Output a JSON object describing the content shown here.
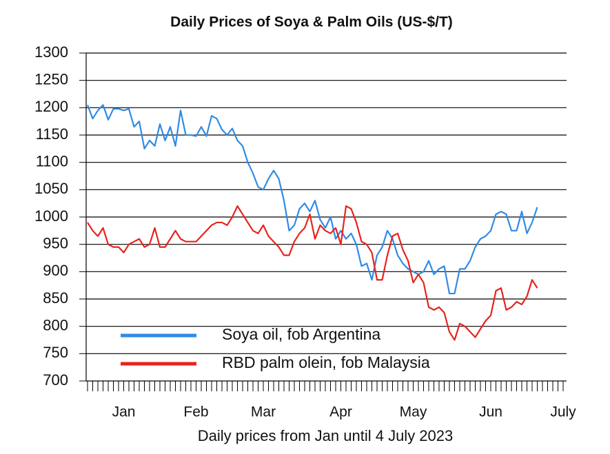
{
  "chart_data": {
    "type": "line",
    "title": "Daily Prices of Soya & Palm Oils (US-$/T)",
    "x_label": "Daily prices from Jan until 4 July 2023",
    "categories": [
      null,
      null,
      null,
      null,
      null,
      null,
      null,
      "Jan",
      null,
      null,
      null,
      null,
      null,
      null,
      null,
      null,
      null,
      null,
      null,
      null,
      null,
      "Feb",
      null,
      null,
      null,
      null,
      null,
      null,
      null,
      null,
      null,
      null,
      null,
      null,
      "Mar",
      null,
      null,
      null,
      null,
      null,
      null,
      null,
      null,
      null,
      null,
      null,
      null,
      null,
      null,
      "Apr",
      null,
      null,
      null,
      null,
      null,
      null,
      null,
      null,
      null,
      null,
      null,
      null,
      null,
      "May",
      null,
      null,
      null,
      null,
      null,
      null,
      null,
      null,
      null,
      null,
      null,
      null,
      null,
      null,
      "Jun",
      null,
      null,
      null,
      null,
      null,
      null,
      null,
      null,
      null,
      null,
      null,
      null,
      null,
      "July"
    ],
    "series": [
      {
        "name": "Soya oil, fob Argentina",
        "color": "#2e8be6",
        "values": [
          1205,
          1180,
          1195,
          1205,
          1178,
          1198,
          1198,
          1195,
          1198,
          1165,
          1175,
          1125,
          1140,
          1130,
          1170,
          1140,
          1165,
          1130,
          1195,
          1150,
          1150,
          1148,
          1165,
          1148,
          1185,
          1180,
          1160,
          1150,
          1162,
          1140,
          1130,
          1100,
          1080,
          1055,
          1050,
          1070,
          1085,
          1070,
          1030,
          975,
          985,
          1015,
          1025,
          1010,
          1030,
          995,
          980,
          1000,
          960,
          975,
          960,
          970,
          950,
          910,
          915,
          885,
          930,
          945,
          975,
          960,
          930,
          915,
          905,
          900,
          895,
          900,
          920,
          895,
          905,
          910,
          860,
          860,
          905,
          905,
          920,
          945,
          960,
          965,
          975,
          1005,
          1010,
          1005,
          975,
          975,
          1010,
          970,
          990,
          1018,
          null,
          null,
          null,
          null,
          null
        ]
      },
      {
        "name": "RBD palm olein, fob Malaysia",
        "color": "#e8221c",
        "values": [
          990,
          975,
          965,
          980,
          950,
          945,
          945,
          935,
          950,
          955,
          960,
          945,
          950,
          980,
          945,
          945,
          960,
          975,
          960,
          955,
          955,
          955,
          965,
          975,
          985,
          990,
          990,
          985,
          1000,
          1020,
          1005,
          990,
          975,
          970,
          985,
          965,
          955,
          945,
          930,
          930,
          955,
          970,
          980,
          1005,
          960,
          985,
          975,
          970,
          980,
          950,
          1020,
          1015,
          990,
          955,
          950,
          935,
          885,
          885,
          930,
          965,
          970,
          940,
          920,
          880,
          895,
          880,
          835,
          830,
          835,
          825,
          790,
          775,
          805,
          800,
          790,
          780,
          795,
          810,
          820,
          865,
          870,
          830,
          835,
          845,
          840,
          855,
          885,
          870,
          null,
          null,
          null,
          null,
          null
        ]
      }
    ],
    "ylim": [
      700,
      1300
    ],
    "yticks": [
      700,
      750,
      800,
      850,
      900,
      950,
      1000,
      1050,
      1100,
      1150,
      1200,
      1250,
      1300
    ],
    "grid": true,
    "legend": "lower left"
  }
}
